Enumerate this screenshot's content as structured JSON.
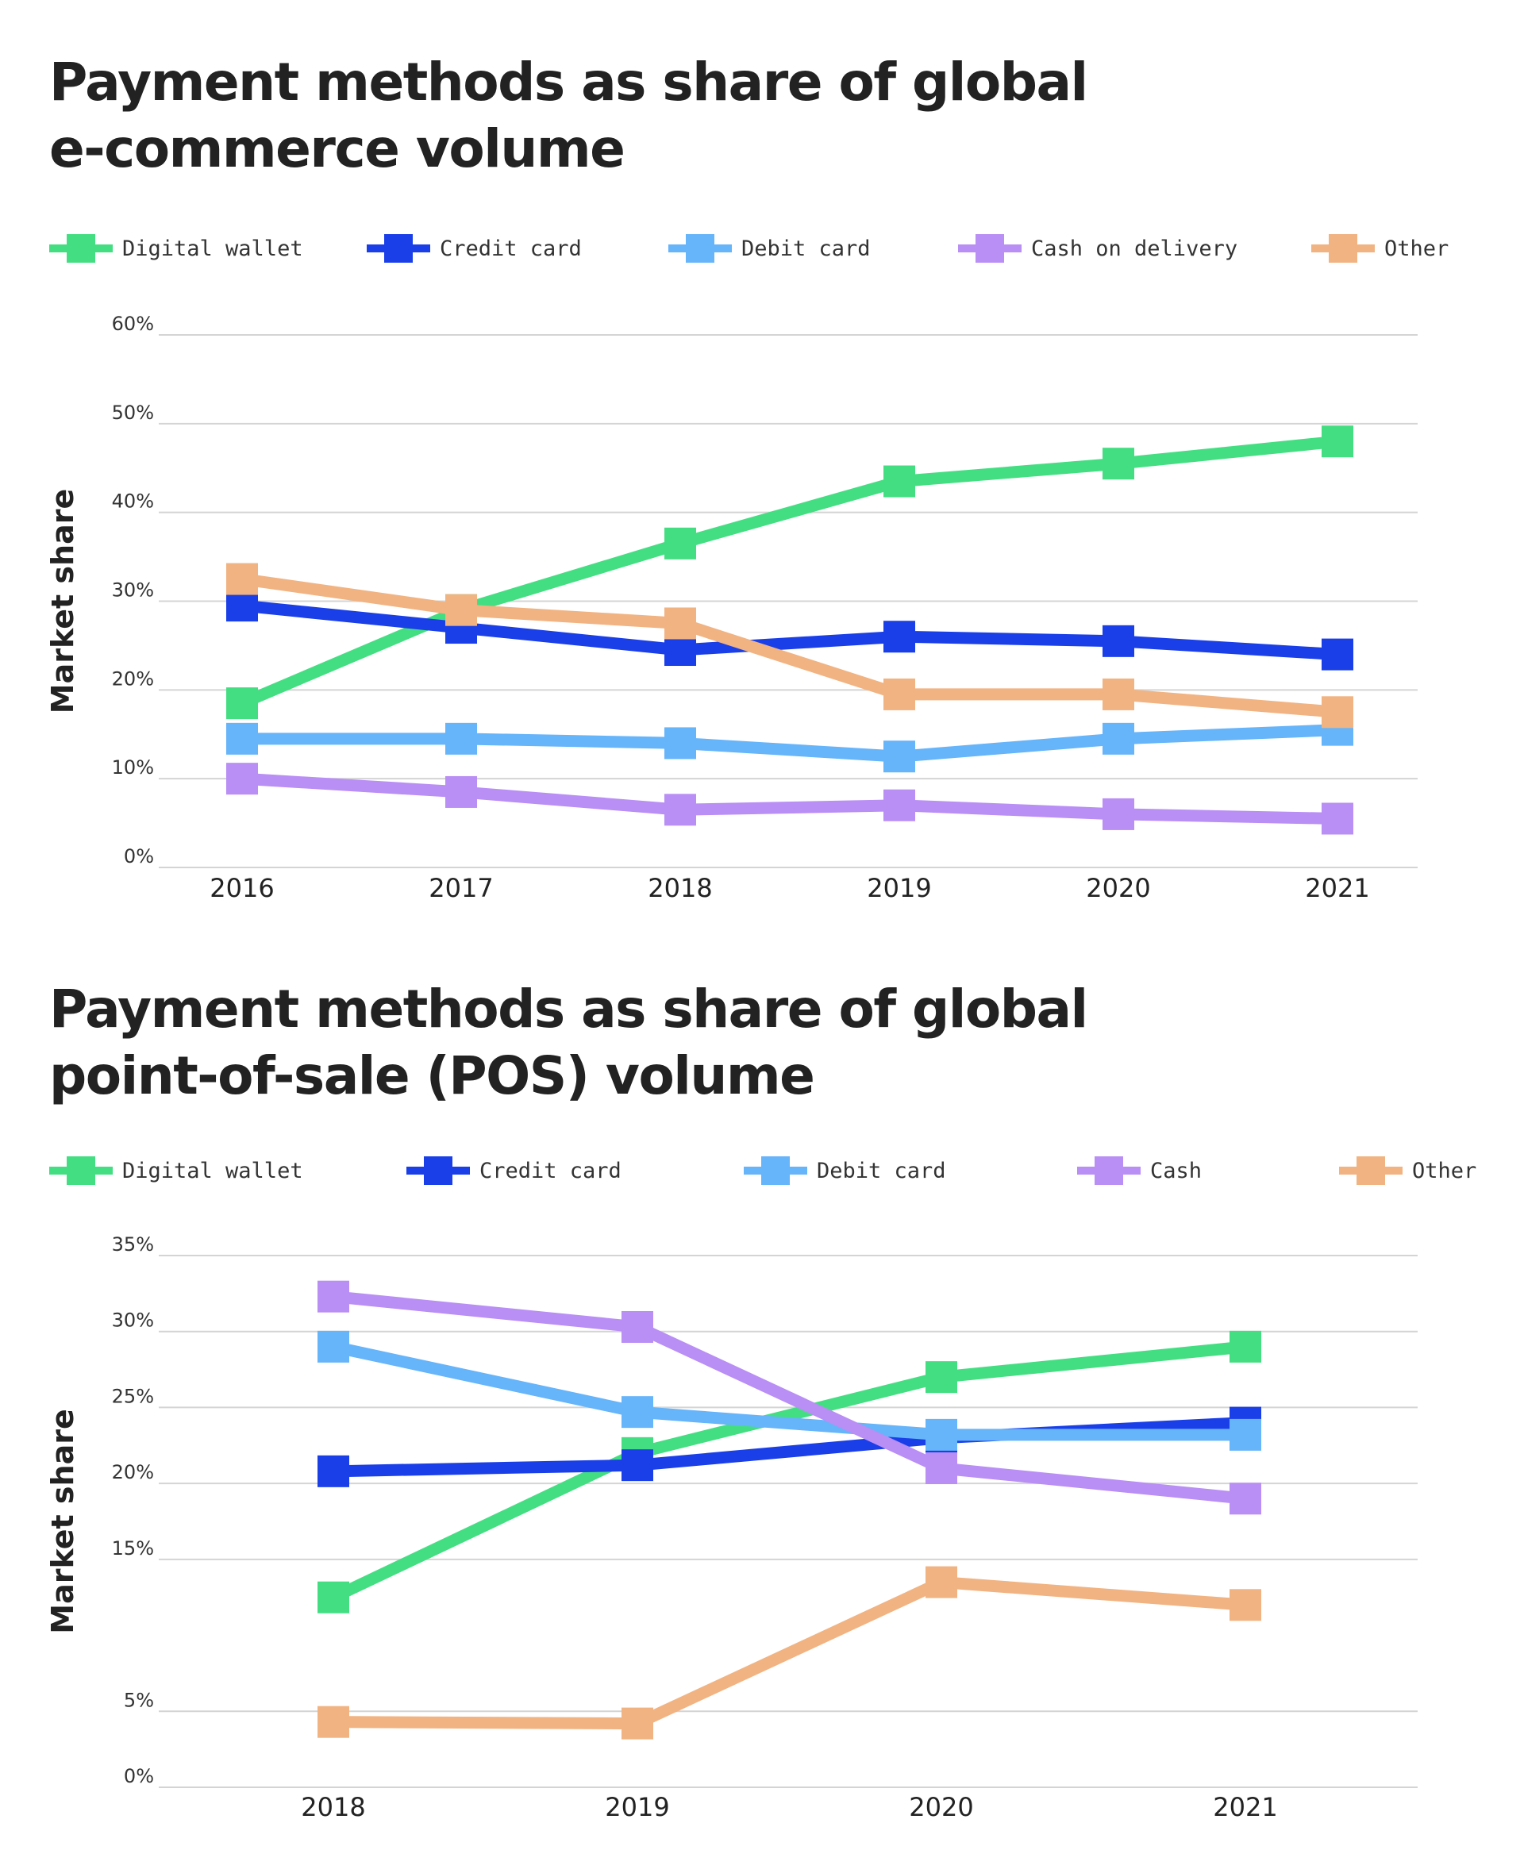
{
  "chart_data": [
    {
      "type": "line",
      "title": "Payment methods as share of global e-commerce volume",
      "title_lines": [
        "Payment methods as share of global",
        "e-commerce volume"
      ],
      "ylabel": "Market share",
      "xlabel": "",
      "x": [
        "2016",
        "2017",
        "2018",
        "2019",
        "2020",
        "2021"
      ],
      "ylim": [
        0,
        60
      ],
      "yticks": [
        0,
        10,
        20,
        30,
        40,
        50,
        60
      ],
      "ytick_labels": [
        "0%",
        "10%",
        "20%",
        "30%",
        "40%",
        "50%",
        "60%"
      ],
      "grid": true,
      "legend_position": "top",
      "series": [
        {
          "name": "Digital wallet",
          "color": "#44de82",
          "values": [
            18.5,
            29,
            36.5,
            43.5,
            45.5,
            48
          ]
        },
        {
          "name": "Credit card",
          "color": "#1a3fe8",
          "values": [
            29.5,
            27,
            24.5,
            26,
            25.5,
            24
          ]
        },
        {
          "name": "Debit card",
          "color": "#66b4fa",
          "values": [
            14.5,
            14.5,
            14,
            12.5,
            14.5,
            15.5
          ]
        },
        {
          "name": "Cash on delivery",
          "color": "#b98ef5",
          "values": [
            10,
            8.5,
            6.5,
            7,
            6,
            5.5
          ]
        },
        {
          "name": "Other",
          "color": "#f1b382",
          "values": [
            32.5,
            29,
            27.5,
            19.5,
            19.5,
            17.5
          ]
        }
      ]
    },
    {
      "type": "line",
      "title": "Payment methods as share of global point-of-sale (POS) volume",
      "title_lines": [
        "Payment methods as share of global",
        "point-of-sale (POS) volume"
      ],
      "ylabel": "Market share",
      "xlabel": "",
      "x": [
        "2018",
        "2019",
        "2020",
        "2021"
      ],
      "ylim": [
        0,
        35
      ],
      "yticks": [
        0,
        5,
        15,
        20,
        25,
        30,
        35
      ],
      "ytick_labels": [
        "0%",
        "5%",
        "15%",
        "20%",
        "25%",
        "30%",
        "35%"
      ],
      "grid": true,
      "legend_position": "top",
      "series": [
        {
          "name": "Digital wallet",
          "color": "#44de82",
          "values": [
            12.5,
            22,
            27,
            29
          ]
        },
        {
          "name": "Credit card",
          "color": "#1a3fe8",
          "values": [
            20.8,
            21.2,
            23,
            24
          ]
        },
        {
          "name": "Debit card",
          "color": "#66b4fa",
          "values": [
            29,
            24.7,
            23.2,
            23.2
          ]
        },
        {
          "name": "Cash",
          "color": "#b98ef5",
          "values": [
            32.3,
            30.3,
            21,
            19
          ]
        },
        {
          "name": "Other",
          "color": "#f1b382",
          "values": [
            4.3,
            4.2,
            13.5,
            12
          ]
        }
      ]
    }
  ]
}
